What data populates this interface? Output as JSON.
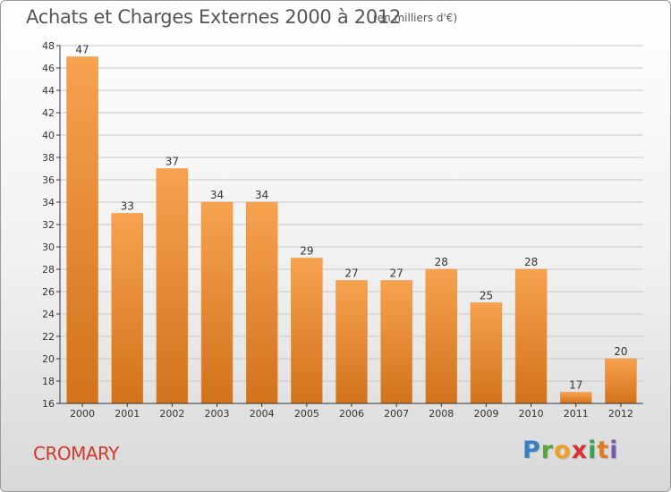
{
  "header": {
    "title": "Achats et Charges Externes 2000 à 2012",
    "unit": "(en milliers d'€)"
  },
  "footer": {
    "commune": "CROMARY",
    "logo_letters": [
      "P",
      "r",
      "o",
      "x",
      "i",
      "t",
      "i"
    ]
  },
  "colors": {
    "bar_top": "#f7a24f",
    "bar_bottom": "#d2721c",
    "commune_text": "#d0392b"
  },
  "chart_data": {
    "type": "bar",
    "title": "Achats et Charges Externes 2000 à 2012",
    "subtitle": "(en milliers d'€)",
    "categories": [
      "2000",
      "2001",
      "2002",
      "2003",
      "2004",
      "2005",
      "2006",
      "2007",
      "2008",
      "2009",
      "2010",
      "2011",
      "2012"
    ],
    "values": [
      47,
      33,
      37,
      34,
      34,
      29,
      27,
      27,
      28,
      25,
      28,
      17,
      20
    ],
    "ylim": [
      16,
      48
    ],
    "yticks": [
      16,
      18,
      20,
      22,
      24,
      26,
      28,
      30,
      32,
      34,
      36,
      38,
      40,
      42,
      44,
      46,
      48
    ],
    "grid": true,
    "data_labels": true
  }
}
